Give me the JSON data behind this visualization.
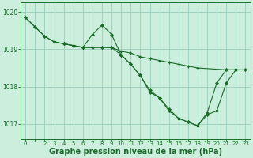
{
  "background_color": "#cceedd",
  "grid_color": "#99ccbb",
  "line_color": "#1a6b2a",
  "xlabel": "Graphe pression niveau de la mer (hPa)",
  "xlabel_fontsize": 7,
  "ylim": [
    1016.6,
    1020.25
  ],
  "xlim": [
    -0.5,
    23.5
  ],
  "yticks": [
    1017,
    1018,
    1019,
    1020
  ],
  "xticks": [
    0,
    1,
    2,
    3,
    4,
    5,
    6,
    7,
    8,
    9,
    10,
    11,
    12,
    13,
    14,
    15,
    16,
    17,
    18,
    19,
    20,
    21,
    22,
    23
  ],
  "s1_x": [
    0,
    1,
    2,
    3,
    4,
    5,
    6,
    7,
    8,
    9,
    10,
    11,
    12,
    13,
    14,
    15,
    16,
    17,
    18,
    21,
    22
  ],
  "s1_y": [
    1019.85,
    1019.6,
    1019.35,
    1019.2,
    1019.15,
    1019.1,
    1019.05,
    1019.05,
    1019.05,
    1019.05,
    1018.95,
    1018.9,
    1018.8,
    1018.75,
    1018.7,
    1018.65,
    1018.6,
    1018.55,
    1018.5,
    1018.45,
    1018.45
  ],
  "s2_x": [
    0,
    1,
    2,
    3,
    4,
    5,
    6,
    7,
    8,
    9,
    10,
    11,
    12,
    13,
    14,
    15,
    16,
    17,
    18,
    19,
    20,
    21,
    22
  ],
  "s2_y": [
    1019.85,
    1019.6,
    1019.35,
    1019.2,
    1019.15,
    1019.1,
    1019.05,
    1019.4,
    1019.65,
    1019.4,
    1018.85,
    1018.6,
    1018.3,
    1017.85,
    1017.7,
    1017.4,
    1017.15,
    1017.05,
    1016.95,
    1017.3,
    1018.1,
    1018.45,
    1018.45
  ],
  "s3_x": [
    4,
    5,
    6,
    7,
    8,
    9,
    10,
    11,
    12,
    13,
    14,
    15,
    16,
    17,
    18,
    19,
    20,
    21,
    22,
    23
  ],
  "s3_y": [
    1019.15,
    1019.1,
    1019.05,
    1019.05,
    1019.05,
    1019.05,
    1018.85,
    1018.6,
    1018.3,
    1017.9,
    1017.7,
    1017.35,
    1017.15,
    1017.05,
    1016.95,
    1017.25,
    1017.35,
    1018.1,
    1018.45,
    1018.45
  ]
}
